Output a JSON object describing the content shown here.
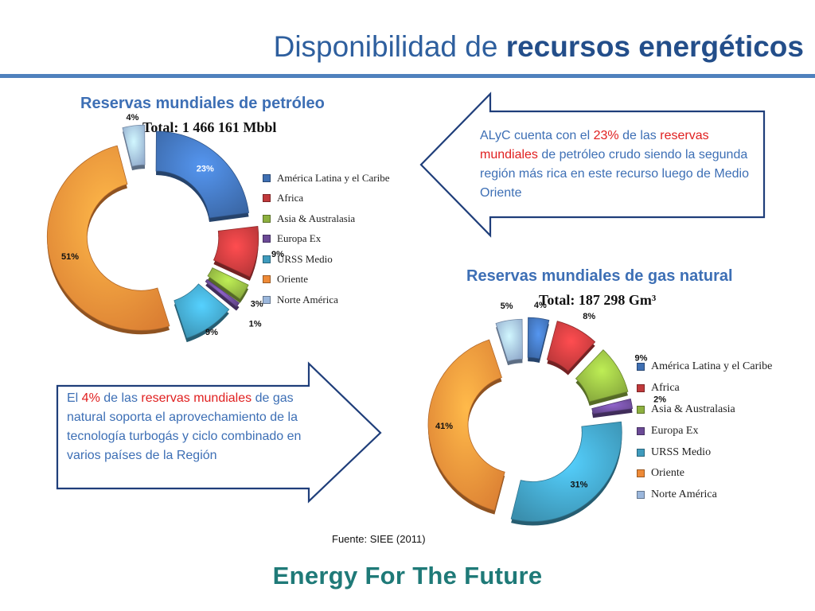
{
  "slide": {
    "title_plain": "Disponibilidad de",
    "title_bold": "recursos energéticos",
    "source": "Fuente:  SIEE (2011)",
    "brand": "Energy For The Future"
  },
  "callouts": {
    "oil": {
      "part1": "ALyC cuenta con el ",
      "pct": "23%",
      "part2": " de las ",
      "highlight": "reservas mundiales",
      "part3": " de petróleo crudo siendo la segunda región más rica en este recurso luego de Medio Oriente"
    },
    "gas": {
      "part1": "El ",
      "pct": "4%",
      "part2": " de las ",
      "highlight": "reservas mundiales",
      "part3": " de gas natural soporta el aprovechamiento de la tecnología turbogás y ciclo combinado en varios países de la Región"
    },
    "border_color": "#1f3e7a"
  },
  "chart_data": [
    {
      "type": "pie",
      "title": "Reservas mundiales de petróleo",
      "subtitle": "Total: 1 466 161 Mbbl",
      "categories": [
        "América Latina y el Caribe",
        "Africa",
        "Asia & Australasia",
        "Europa Ex",
        "URSS Medio",
        "Oriente",
        "Norte América"
      ],
      "values": [
        23,
        9,
        3,
        1,
        9,
        51,
        4
      ],
      "labels": [
        "23%",
        "9%",
        "3%",
        "1%",
        "9%",
        "51%",
        "4%"
      ],
      "colors": [
        "#3f6fb2",
        "#c0393b",
        "#8db03f",
        "#6b4a96",
        "#3f9bbd",
        "#ee8a37",
        "#9bb7dc"
      ],
      "legend_position": "right"
    },
    {
      "type": "pie",
      "title": "Reservas mundiales de gas natural",
      "subtitle": "Total: 187 298  Gm³",
      "categories": [
        "América Latina y el Caribe",
        "Africa",
        "Asia & Australasia",
        "Europa Ex",
        "URSS Medio",
        "Oriente",
        "Norte América"
      ],
      "values": [
        4,
        8,
        9,
        2,
        31,
        41,
        5
      ],
      "labels": [
        "4%",
        "8%",
        "9%",
        "2%",
        "31%",
        "41%",
        "5%"
      ],
      "colors": [
        "#3f6fb2",
        "#c0393b",
        "#8db03f",
        "#6b4a96",
        "#3f9bbd",
        "#ee8a37",
        "#9bb7dc"
      ],
      "legend_position": "right"
    }
  ]
}
